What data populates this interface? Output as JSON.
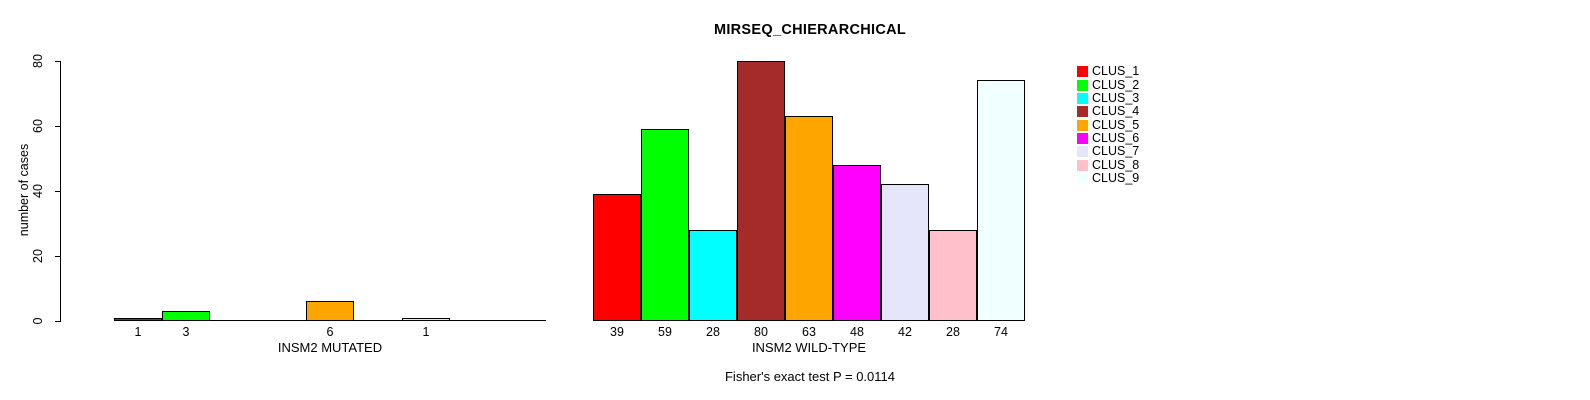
{
  "chart_data": {
    "type": "bar",
    "title": "MIRSEQ_CHIERARCHICAL",
    "ylabel": "number of cases",
    "ylim": [
      0,
      80
    ],
    "yticks": [
      0,
      20,
      40,
      60,
      80
    ],
    "grid": false,
    "legend_position": "right",
    "clusters": [
      {
        "name": "CLUS_1",
        "color": "#FF0000"
      },
      {
        "name": "CLUS_2",
        "color": "#00FF00"
      },
      {
        "name": "CLUS_3",
        "color": "#00FFFF"
      },
      {
        "name": "CLUS_4",
        "color": "#A52A2A"
      },
      {
        "name": "CLUS_5",
        "color": "#FFA500"
      },
      {
        "name": "CLUS_6",
        "color": "#FF00FF"
      },
      {
        "name": "CLUS_7",
        "color": "#E6E6FA"
      },
      {
        "name": "CLUS_8",
        "color": "#FFC0CB"
      },
      {
        "name": "CLUS_9",
        "color": "#F0FFFF"
      }
    ],
    "groups": [
      {
        "xlabel": "INSM2 MUTATED",
        "values": [
          1,
          3,
          0,
          0,
          6,
          0,
          1,
          0,
          0
        ]
      },
      {
        "xlabel": "INSM2 WILD-TYPE",
        "values": [
          39,
          59,
          28,
          80,
          63,
          48,
          42,
          28,
          74
        ]
      }
    ],
    "footnote": "Fisher's exact test P = 0.0114"
  }
}
